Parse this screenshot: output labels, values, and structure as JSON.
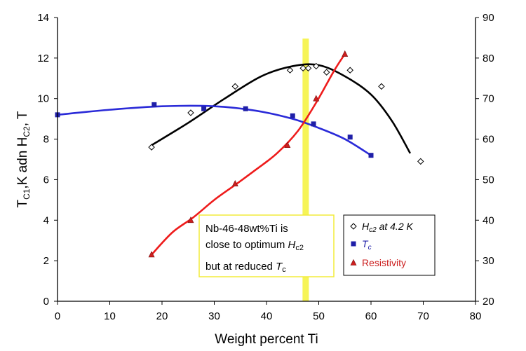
{
  "chart_data": {
    "type": "scatter",
    "xlabel": "Weight percent Ti",
    "ylabel": "T",
    "ylabel_parts": [
      "T",
      "C1",
      ",K adn H",
      "C2",
      ", T"
    ],
    "xlim": [
      0,
      80
    ],
    "ylim_left": [
      0,
      14
    ],
    "ylim_right": [
      20,
      90
    ],
    "x_ticks": [
      0,
      10,
      20,
      30,
      40,
      50,
      60,
      70,
      80
    ],
    "y_ticks_left": [
      0,
      2,
      4,
      6,
      8,
      10,
      12,
      14
    ],
    "y_ticks_right": [
      20,
      30,
      40,
      50,
      60,
      70,
      80,
      90
    ],
    "highlight_band_x": 47.5,
    "series": [
      {
        "name": "Hc2 at 4.2 K",
        "name_parts": [
          "H",
          "c2",
          " at 4.2 K"
        ],
        "marker": "diamond",
        "color": "#000000",
        "axis": "left",
        "points": [
          [
            18,
            7.6
          ],
          [
            25.5,
            9.3
          ],
          [
            34,
            10.6
          ],
          [
            44.5,
            11.4
          ],
          [
            48,
            11.5
          ],
          [
            49.5,
            11.6
          ],
          [
            47,
            11.5
          ],
          [
            51.5,
            11.3
          ],
          [
            56,
            11.4
          ],
          [
            62,
            10.6
          ],
          [
            69.5,
            6.9
          ]
        ],
        "fit": [
          [
            18,
            7.7
          ],
          [
            25,
            8.8
          ],
          [
            32,
            10.0
          ],
          [
            39,
            11.1
          ],
          [
            45,
            11.6
          ],
          [
            50,
            11.65
          ],
          [
            55,
            11.1
          ],
          [
            60,
            10.2
          ],
          [
            64,
            8.9
          ],
          [
            67.5,
            7.3
          ]
        ]
      },
      {
        "name": "Tc",
        "name_parts": [
          "T",
          "c",
          ""
        ],
        "marker": "square",
        "color": "#1f1fa8",
        "axis": "left",
        "points": [
          [
            0,
            9.2
          ],
          [
            18.5,
            9.7
          ],
          [
            28,
            9.5
          ],
          [
            36,
            9.5
          ],
          [
            45,
            9.15
          ],
          [
            49,
            8.75
          ],
          [
            56,
            8.1
          ],
          [
            60,
            7.2
          ]
        ],
        "fit": [
          [
            0,
            9.2
          ],
          [
            10,
            9.45
          ],
          [
            20,
            9.62
          ],
          [
            30,
            9.62
          ],
          [
            38,
            9.4
          ],
          [
            45,
            9.0
          ],
          [
            50,
            8.55
          ],
          [
            55,
            8.0
          ],
          [
            60,
            7.2
          ]
        ]
      },
      {
        "name": "Resistivity",
        "name_parts": [
          "Resistivity",
          "",
          ""
        ],
        "marker": "triangle",
        "color": "#cc1f1f",
        "axis": "right",
        "points": [
          [
            18,
            31.5
          ],
          [
            25.5,
            40
          ],
          [
            34,
            49
          ],
          [
            44,
            58.5
          ],
          [
            49.5,
            70
          ],
          [
            55,
            81
          ]
        ],
        "fit": [
          [
            18,
            31.5
          ],
          [
            22,
            37
          ],
          [
            26,
            40.7
          ],
          [
            30,
            45
          ],
          [
            34,
            48.7
          ],
          [
            38,
            52.5
          ],
          [
            42,
            56.5
          ],
          [
            46,
            62
          ],
          [
            49.5,
            69
          ],
          [
            53,
            77
          ],
          [
            55,
            81
          ]
        ]
      }
    ],
    "annotation": {
      "line1": "Nb-46-48wt%Ti is",
      "line2_prefix": "close to optimum ",
      "line2_symbol": "H",
      "line2_sub": "c2",
      "line3_prefix": "but at reduced ",
      "line3_symbol": "T",
      "line3_sub": "c"
    }
  }
}
